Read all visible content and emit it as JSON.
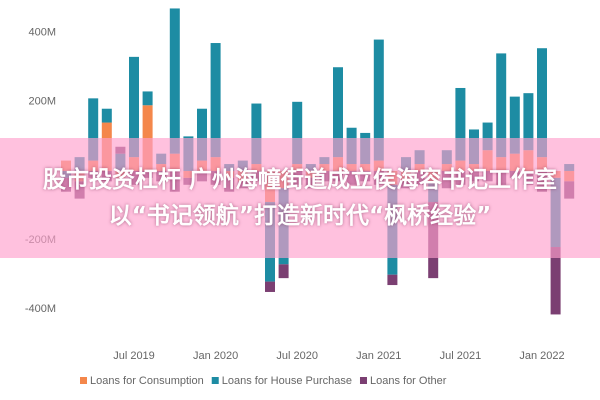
{
  "chart_data": {
    "type": "stacked_bar",
    "categories": [
      null,
      null,
      null,
      null,
      null,
      "Jul 2019",
      null,
      null,
      null,
      null,
      null,
      "Jan 2020",
      null,
      null,
      null,
      null,
      null,
      "Jul 2020",
      null,
      null,
      null,
      null,
      null,
      "Jan 2021",
      null,
      null,
      null,
      null,
      null,
      "Jul 2021",
      null,
      null,
      null,
      null,
      null,
      "Jan 2022",
      null,
      null
    ],
    "series": [
      {
        "name": "Loans for Consumption",
        "color": "#f4874b",
        "values": [
          30,
          -30,
          30,
          140,
          -20,
          40,
          190,
          20,
          50,
          -20,
          30,
          40,
          -20,
          -30,
          20,
          -90,
          -50,
          20,
          -20,
          20,
          40,
          20,
          20,
          30,
          -40,
          -30,
          20,
          -30,
          20,
          30,
          20,
          60,
          40,
          50,
          60,
          40,
          -20,
          -30
        ]
      },
      {
        "name": "Loans for House Purchase",
        "color": "#1d8ca3",
        "values": [
          -20,
          40,
          180,
          40,
          50,
          290,
          40,
          30,
          420,
          100,
          150,
          330,
          20,
          30,
          175,
          -230,
          -220,
          180,
          20,
          20,
          260,
          105,
          90,
          350,
          -260,
          40,
          40,
          -60,
          40,
          210,
          100,
          80,
          300,
          165,
          165,
          315,
          -200,
          20
        ]
      },
      {
        "name": "Loans for Other",
        "color": "#7b3f72",
        "values": [
          -40,
          -50,
          -20,
          -30,
          20,
          -40,
          -20,
          -30,
          -60,
          -20,
          -30,
          -40,
          -40,
          -20,
          -30,
          -30,
          -40,
          -40,
          -30,
          -30,
          -30,
          -40,
          -30,
          -40,
          -30,
          -20,
          -40,
          -220,
          -50,
          -40,
          -30,
          -30,
          -40,
          -20,
          -40,
          -60,
          -195,
          -50
        ]
      }
    ],
    "ylim": [
      -460,
      480
    ],
    "yticks": [
      {
        "value": -400,
        "label": "-400M"
      },
      {
        "value": -200,
        "label": "-200M"
      },
      {
        "value": 200,
        "label": "200M"
      },
      {
        "value": 400,
        "label": "400M"
      }
    ]
  },
  "banner": {
    "lines": [
      "股市投资杠杆 广州海幢街道成立侯海容书记工作室",
      "以“书记领航”打造新时代“枫桥经验”"
    ]
  }
}
